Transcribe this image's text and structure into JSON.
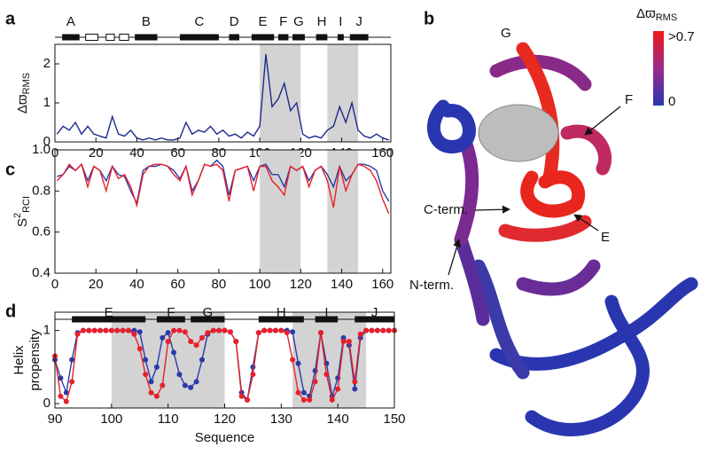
{
  "panel_labels": [
    "a",
    "b",
    "c",
    "d"
  ],
  "chart_data": [
    {
      "type": "line",
      "y_label": "Δϖ",
      "y_label_sub": "RMS",
      "xlim": [
        0,
        164
      ],
      "xticks": [
        0,
        20,
        40,
        60,
        80,
        100,
        120,
        140,
        160
      ],
      "ylim": [
        0,
        2.5
      ],
      "yticks": [
        0,
        1,
        2
      ],
      "shaded": [
        [
          100,
          120
        ],
        [
          133,
          148
        ]
      ],
      "helices": [
        {
          "label": "A",
          "start": 3.5,
          "end": 12
        },
        {
          "label": "B",
          "start": 39,
          "end": 50
        },
        {
          "label": "C",
          "start": 61,
          "end": 80
        },
        {
          "label": "D",
          "start": 85,
          "end": 90
        },
        {
          "label": "E",
          "start": 96,
          "end": 107
        },
        {
          "label": "F",
          "start": 109,
          "end": 114
        },
        {
          "label": "G",
          "start": 116,
          "end": 122
        },
        {
          "label": "H",
          "start": 127.5,
          "end": 133
        },
        {
          "label": "I",
          "start": 138,
          "end": 141
        },
        {
          "label": "J",
          "start": 144,
          "end": 153
        }
      ],
      "strands": [
        {
          "start": 15,
          "end": 21
        },
        {
          "start": 25,
          "end": 29
        },
        {
          "start": 31.5,
          "end": 36
        }
      ],
      "x": [
        1,
        4,
        7,
        10,
        13,
        16,
        19,
        22,
        25,
        28,
        31,
        34,
        37,
        40,
        43,
        46,
        49,
        52,
        55,
        58,
        61,
        64,
        67,
        70,
        73,
        76,
        79,
        82,
        85,
        88,
        91,
        94,
        97,
        100,
        103,
        106,
        109,
        112,
        115,
        118,
        121,
        124,
        127,
        130,
        133,
        136,
        139,
        142,
        145,
        148,
        151,
        154,
        157,
        160,
        163
      ],
      "series": [
        {
          "color": "#1c2a8e",
          "values": [
            0.2,
            0.4,
            0.3,
            0.5,
            0.2,
            0.4,
            0.2,
            0.15,
            0.1,
            0.65,
            0.2,
            0.15,
            0.3,
            0.1,
            0.05,
            0.1,
            0.05,
            0.1,
            0.05,
            0.05,
            0.1,
            0.5,
            0.2,
            0.3,
            0.25,
            0.4,
            0.2,
            0.3,
            0.15,
            0.2,
            0.1,
            0.25,
            0.15,
            0.4,
            2.25,
            0.9,
            1.1,
            1.5,
            0.8,
            1.0,
            0.2,
            0.1,
            0.15,
            0.1,
            0.3,
            0.4,
            0.9,
            0.5,
            1.0,
            0.3,
            0.15,
            0.1,
            0.2,
            0.1,
            0.05
          ]
        }
      ]
    },
    {
      "type": "line",
      "y_label": "S",
      "y_label_sup": "2",
      "y_label_sub": "RCI",
      "xlim": [
        0,
        164
      ],
      "xticks": [
        0,
        20,
        40,
        60,
        80,
        100,
        120,
        140,
        160
      ],
      "ylim": [
        0.4,
        1.0
      ],
      "yticks": [
        0.4,
        0.6,
        0.8,
        {
          "value": 1,
          "label": "1.0"
        }
      ],
      "shaded": [
        [
          100,
          120
        ],
        [
          133,
          148
        ]
      ],
      "x": [
        1,
        4,
        7,
        10,
        13,
        16,
        19,
        22,
        25,
        28,
        31,
        34,
        37,
        40,
        43,
        46,
        49,
        52,
        55,
        58,
        61,
        64,
        67,
        70,
        73,
        76,
        79,
        82,
        85,
        88,
        91,
        94,
        97,
        100,
        103,
        106,
        109,
        112,
        115,
        118,
        121,
        124,
        127,
        130,
        133,
        136,
        139,
        142,
        145,
        148,
        151,
        154,
        157,
        160,
        163
      ],
      "series": [
        {
          "color": "#2a3aa8",
          "values": [
            0.87,
            0.88,
            0.92,
            0.9,
            0.93,
            0.85,
            0.92,
            0.9,
            0.85,
            0.92,
            0.88,
            0.87,
            0.8,
            0.74,
            0.9,
            0.92,
            0.92,
            0.93,
            0.92,
            0.9,
            0.86,
            0.92,
            0.8,
            0.85,
            0.93,
            0.92,
            0.95,
            0.92,
            0.78,
            0.9,
            0.91,
            0.92,
            0.85,
            0.92,
            0.93,
            0.88,
            0.88,
            0.82,
            0.92,
            0.9,
            0.92,
            0.85,
            0.9,
            0.92,
            0.88,
            0.82,
            0.92,
            0.85,
            0.88,
            0.93,
            0.93,
            0.92,
            0.9,
            0.8,
            0.75
          ]
        },
        {
          "color": "#e8202a",
          "values": [
            0.85,
            0.88,
            0.93,
            0.9,
            0.93,
            0.82,
            0.92,
            0.9,
            0.8,
            0.92,
            0.86,
            0.88,
            0.82,
            0.73,
            0.88,
            0.92,
            0.93,
            0.93,
            0.92,
            0.88,
            0.85,
            0.92,
            0.78,
            0.85,
            0.93,
            0.92,
            0.93,
            0.9,
            0.75,
            0.9,
            0.91,
            0.92,
            0.8,
            0.92,
            0.92,
            0.85,
            0.82,
            0.78,
            0.92,
            0.9,
            0.92,
            0.82,
            0.9,
            0.92,
            0.85,
            0.72,
            0.92,
            0.8,
            0.88,
            0.93,
            0.92,
            0.9,
            0.85,
            0.76,
            0.69
          ]
        }
      ]
    },
    {
      "type": "line",
      "markers": true,
      "y_label_lines": [
        "Helix",
        "propensity"
      ],
      "x_label": "Sequence",
      "xlim": [
        90,
        150
      ],
      "xticks": [
        90,
        100,
        110,
        120,
        130,
        140,
        150
      ],
      "ylim": [
        -0.06,
        1.25
      ],
      "yticks": [
        0,
        1
      ],
      "shaded": [
        [
          100,
          120
        ],
        [
          132,
          145
        ]
      ],
      "helices": [
        {
          "label": "E",
          "start": 93,
          "end": 106
        },
        {
          "label": "F",
          "start": 108,
          "end": 113
        },
        {
          "label": "G",
          "start": 114,
          "end": 120
        },
        {
          "label": "H",
          "start": 126,
          "end": 134
        },
        {
          "label": "I",
          "start": 136,
          "end": 140
        },
        {
          "label": "J",
          "start": 143,
          "end": 150
        }
      ],
      "x": [
        90,
        91,
        92,
        93,
        94,
        95,
        96,
        97,
        98,
        99,
        100,
        101,
        102,
        103,
        104,
        105,
        106,
        107,
        108,
        109,
        110,
        111,
        112,
        113,
        114,
        115,
        116,
        117,
        118,
        119,
        120,
        121,
        122,
        123,
        124,
        125,
        126,
        127,
        128,
        129,
        130,
        131,
        132,
        133,
        134,
        135,
        136,
        137,
        138,
        139,
        140,
        141,
        142,
        143,
        144,
        145,
        146,
        147,
        148,
        149,
        150
      ],
      "series": [
        {
          "color": "#2a3aa8",
          "values": [
            0.6,
            0.35,
            0.15,
            0.6,
            0.97,
            1,
            1,
            1,
            1,
            1,
            1,
            1,
            1,
            1,
            1,
            0.98,
            0.6,
            0.3,
            0.5,
            0.9,
            0.97,
            0.7,
            0.4,
            0.25,
            0.22,
            0.3,
            0.6,
            0.95,
            1,
            1,
            1,
            0.98,
            0.85,
            0.15,
            0.05,
            0.5,
            0.97,
            1,
            1,
            1,
            1,
            1,
            0.98,
            0.55,
            0.15,
            0.1,
            0.45,
            0.97,
            0.55,
            0.1,
            0.35,
            0.9,
            0.8,
            0.2,
            0.9,
            1,
            1,
            1,
            1,
            1,
            1
          ]
        },
        {
          "color": "#e8202a",
          "values": [
            0.65,
            0.1,
            0.03,
            0.3,
            0.95,
            1,
            1,
            1,
            1,
            1,
            1,
            1,
            1,
            1,
            0.95,
            0.75,
            0.4,
            0.15,
            0.1,
            0.25,
            0.85,
            1,
            1,
            0.98,
            0.85,
            0.8,
            0.9,
            0.97,
            1,
            1,
            1,
            0.98,
            0.85,
            0.1,
            0.05,
            0.4,
            0.97,
            1,
            1,
            1,
            1,
            0.97,
            0.6,
            0.15,
            0.05,
            0.05,
            0.3,
            0.97,
            0.4,
            0.05,
            0.2,
            0.85,
            0.85,
            0.3,
            0.95,
            1,
            1,
            1,
            1,
            1,
            1
          ]
        }
      ]
    }
  ],
  "structure": {
    "colorbar": {
      "title": "Δϖ",
      "title_sub": "RMS",
      "max_label": ">0.7",
      "min_label": "0"
    },
    "annotations": [
      "G",
      "F",
      "E",
      "C-term.",
      "N-term."
    ]
  }
}
